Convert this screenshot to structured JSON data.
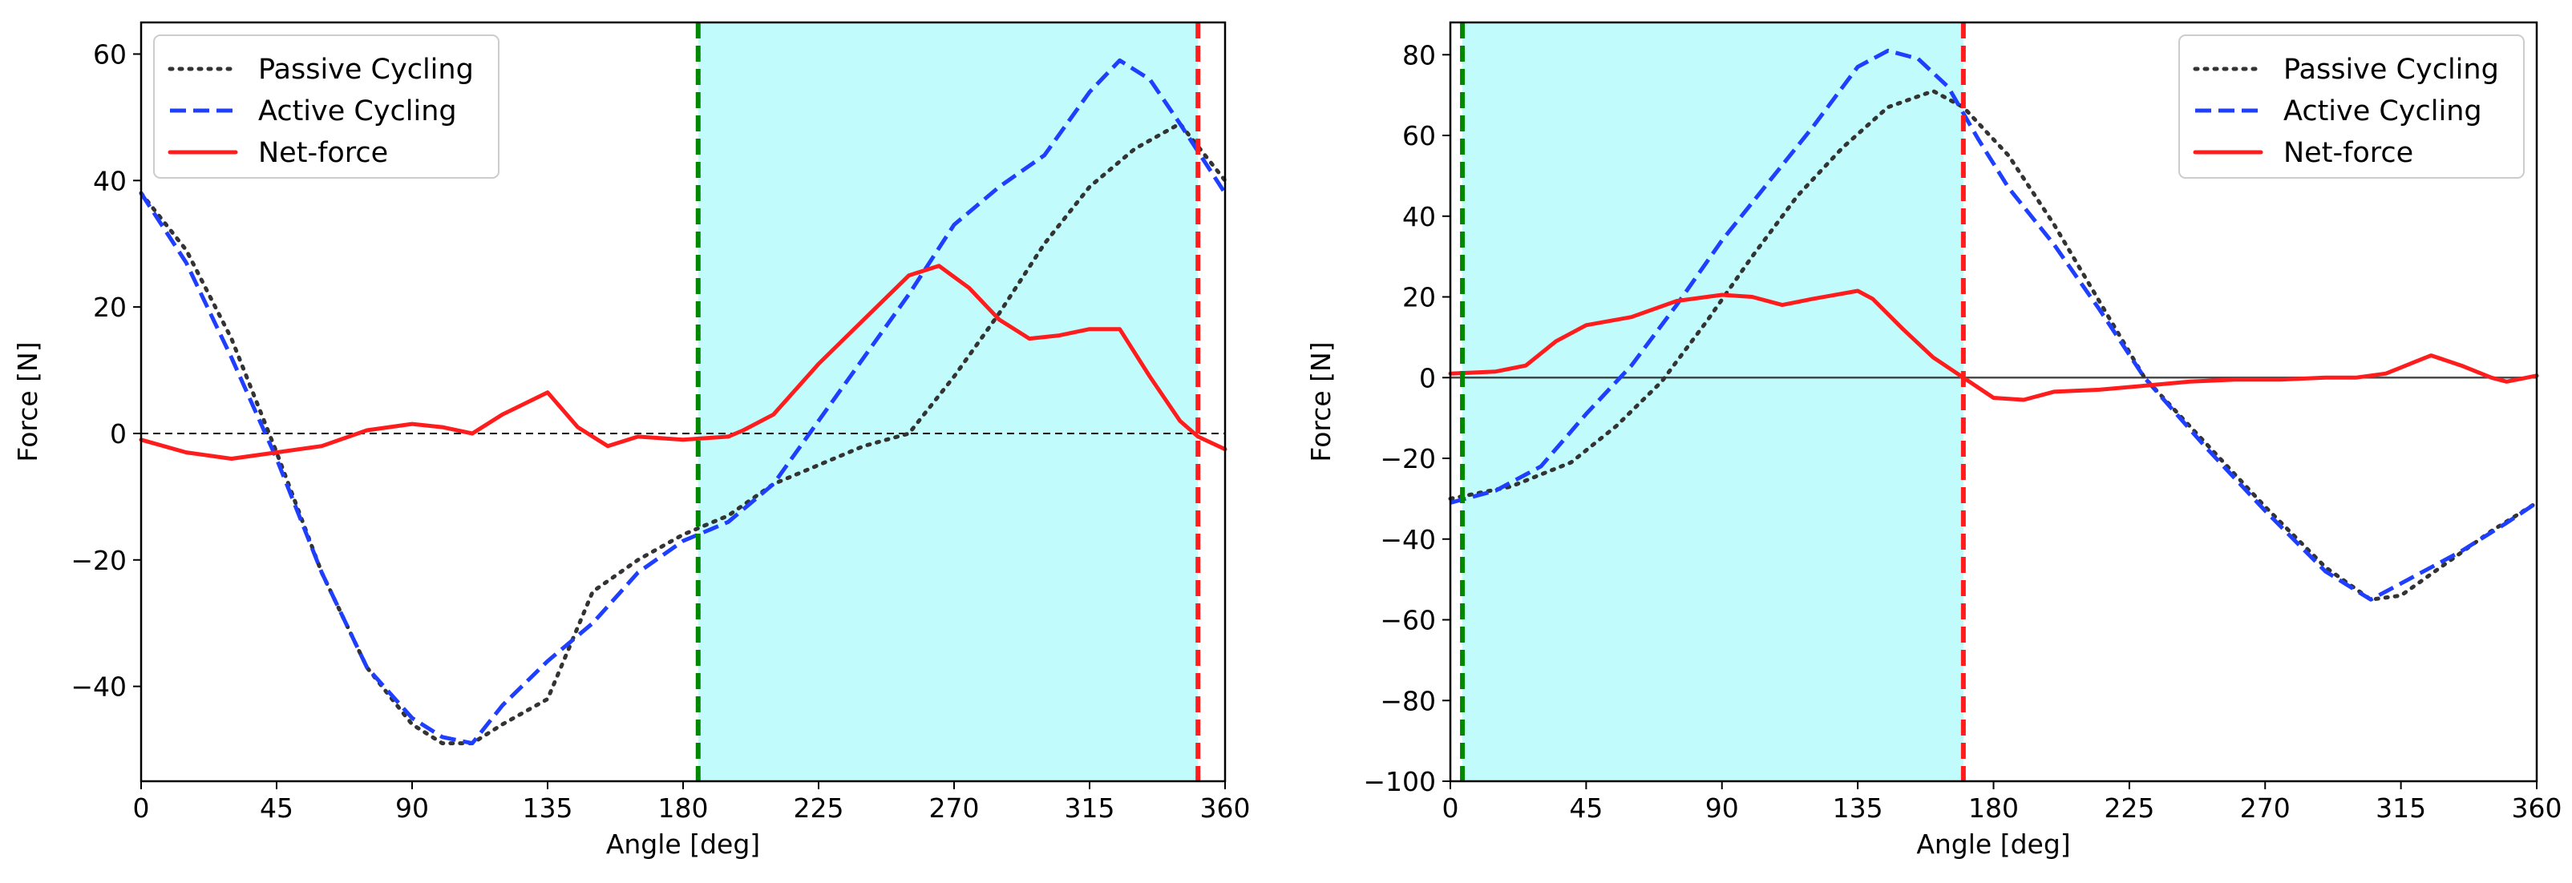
{
  "colors": {
    "passive": "#333333",
    "active": "#1f3fff",
    "net": "#ff1c1c",
    "shade": "#c2fbfb",
    "green_line": "#008800",
    "red_line": "#ff1c1c",
    "zero_line": "#000000"
  },
  "chart_data": [
    {
      "type": "line",
      "title": "",
      "xlabel": "Angle [deg]",
      "ylabel": "Force [N]",
      "xlim": [
        0,
        360
      ],
      "ylim": [
        -55,
        65
      ],
      "xticks": [
        0,
        45,
        90,
        135,
        180,
        225,
        270,
        315,
        360
      ],
      "yticks": [
        -40,
        -20,
        0,
        20,
        40,
        60
      ],
      "shaded_region": [
        185,
        351
      ],
      "vlines": [
        {
          "x": 185,
          "color": "green"
        },
        {
          "x": 351,
          "color": "red"
        }
      ],
      "zero_line": "dashed",
      "legend": "top-left",
      "series": [
        {
          "name": "Passive Cycling",
          "style": "dotted",
          "x": [
            0,
            15,
            30,
            45,
            60,
            75,
            90,
            100,
            110,
            120,
            135,
            150,
            165,
            180,
            195,
            210,
            225,
            240,
            255,
            270,
            285,
            300,
            315,
            330,
            345,
            360
          ],
          "y": [
            38,
            29,
            15,
            -3,
            -22,
            -37,
            -46,
            -49,
            -49,
            -46,
            -42,
            -25,
            -20,
            -16,
            -13,
            -8,
            -5,
            -2,
            0,
            9,
            19,
            30,
            39,
            45,
            49,
            40
          ]
        },
        {
          "name": "Active Cycling",
          "style": "dashed",
          "x": [
            0,
            15,
            30,
            45,
            60,
            75,
            90,
            100,
            110,
            120,
            135,
            150,
            165,
            180,
            195,
            210,
            225,
            240,
            255,
            270,
            285,
            300,
            315,
            325,
            335,
            345,
            360
          ],
          "y": [
            38,
            27,
            12,
            -4,
            -22,
            -37,
            -45,
            -48,
            -49,
            -43,
            -36,
            -30,
            -22,
            -17,
            -14,
            -8,
            2,
            12,
            22,
            33,
            39,
            44,
            54,
            59,
            56,
            49,
            38
          ]
        },
        {
          "name": "Net-force",
          "style": "solid",
          "x": [
            0,
            15,
            30,
            45,
            60,
            75,
            90,
            100,
            110,
            120,
            135,
            145,
            155,
            165,
            180,
            195,
            200,
            210,
            225,
            240,
            255,
            265,
            275,
            285,
            295,
            305,
            315,
            325,
            335,
            345,
            351,
            360
          ],
          "y": [
            -1,
            -3,
            -4,
            -3,
            -2,
            0.5,
            1.5,
            1,
            0,
            3,
            6.5,
            1,
            -2,
            -0.5,
            -1,
            -0.5,
            0.5,
            3,
            11,
            18,
            25,
            26.5,
            23,
            18,
            15,
            15.5,
            16.5,
            16.5,
            9,
            2,
            -0.5,
            -2.5
          ]
        }
      ]
    },
    {
      "type": "line",
      "title": "",
      "xlabel": "Angle [deg]",
      "ylabel": "Force [N]",
      "xlim": [
        0,
        360
      ],
      "ylim": [
        -100,
        88
      ],
      "xticks": [
        0,
        45,
        90,
        135,
        180,
        225,
        270,
        315,
        360
      ],
      "yticks": [
        -100,
        -80,
        -60,
        -40,
        -20,
        0,
        20,
        40,
        60,
        80
      ],
      "shaded_region": [
        4,
        170
      ],
      "vlines": [
        {
          "x": 4,
          "color": "green"
        },
        {
          "x": 170,
          "color": "red"
        }
      ],
      "zero_line": "solid",
      "legend": "top-right",
      "series": [
        {
          "name": "Passive Cycling",
          "style": "dotted",
          "x": [
            0,
            20,
            40,
            55,
            70,
            85,
            100,
            115,
            130,
            145,
            160,
            170,
            185,
            200,
            215,
            230,
            250,
            270,
            290,
            305,
            315,
            330,
            345,
            360
          ],
          "y": [
            -30,
            -27,
            -21,
            -12,
            -1,
            14,
            30,
            45,
            57,
            67,
            71,
            67,
            55,
            38,
            19,
            0,
            -16,
            -32,
            -47,
            -55,
            -54,
            -46,
            -38,
            -31
          ]
        },
        {
          "name": "Active Cycling",
          "style": "dashed",
          "x": [
            0,
            15,
            30,
            45,
            60,
            75,
            90,
            105,
            120,
            135,
            145,
            155,
            165,
            175,
            185,
            200,
            215,
            230,
            250,
            270,
            290,
            305,
            320,
            335,
            350,
            360
          ],
          "y": [
            -31,
            -28,
            -22,
            -9,
            3,
            18,
            34,
            48,
            62,
            77,
            81,
            79,
            72,
            59,
            47,
            33,
            17,
            0,
            -17,
            -33,
            -48,
            -55,
            -49,
            -43,
            -36,
            -31
          ]
        },
        {
          "name": "Net-force",
          "style": "solid",
          "x": [
            0,
            15,
            25,
            35,
            45,
            60,
            75,
            90,
            100,
            110,
            120,
            135,
            140,
            150,
            160,
            170,
            180,
            190,
            200,
            215,
            230,
            245,
            260,
            275,
            290,
            300,
            310,
            315,
            320,
            325,
            335,
            345,
            350,
            360
          ],
          "y": [
            1,
            1.5,
            3,
            9,
            13,
            15,
            19,
            20.5,
            20,
            18,
            19.5,
            21.5,
            19.5,
            12,
            5,
            0,
            -5,
            -5.5,
            -3.5,
            -3,
            -2,
            -1,
            -0.5,
            -0.5,
            0,
            0,
            1,
            2.5,
            4,
            5.5,
            3,
            0,
            -1,
            0.5
          ]
        }
      ]
    }
  ]
}
